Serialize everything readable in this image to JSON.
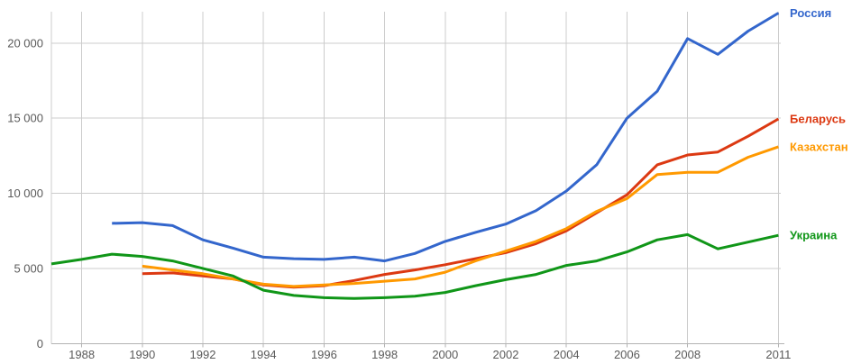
{
  "theme": {
    "background": "#FFFFFF",
    "gridline_color": "#CCCCCC",
    "axis_line_color": "#B3B3B3",
    "tick_mark_color": "#B3B3B3",
    "tick_text_color": "#5A5A5A"
  },
  "chart_data": {
    "type": "line",
    "title": "",
    "xlabel": "",
    "ylabel": "",
    "grid": true,
    "legend_position": "right-end-labels",
    "xlim": [
      1987,
      2011
    ],
    "ylim": [
      0,
      22400
    ],
    "x_tick_years": [
      1988,
      1990,
      1992,
      1994,
      1996,
      1998,
      2000,
      2002,
      2004,
      2006,
      2008,
      2011
    ],
    "x_tick_labels": [
      "1988",
      "1990",
      "1992",
      "1994",
      "1996",
      "1998",
      "2000",
      "2002",
      "2004",
      "2006",
      "2008",
      "2011"
    ],
    "x_gridline_years": [
      1987,
      1988,
      1990,
      1992,
      1994,
      1996,
      1998,
      2000,
      2002,
      2004,
      2006,
      2008,
      2011
    ],
    "y_ticks": [
      {
        "value": 0,
        "label": "0"
      },
      {
        "value": 5000,
        "label": "5 000"
      },
      {
        "value": 10000,
        "label": "10 000"
      },
      {
        "value": 15000,
        "label": "15 000"
      },
      {
        "value": 20000,
        "label": "20 000"
      }
    ],
    "series": [
      {
        "name": "Россия",
        "slug": "russia",
        "color": "#3366CC",
        "start_year": 1989,
        "end_year": 2011,
        "values": [
          8000,
          8050,
          7850,
          6900,
          6350,
          5750,
          5650,
          5600,
          5750,
          5500,
          6000,
          6800,
          7400,
          7950,
          8850,
          10150,
          11900,
          15000,
          16800,
          20300,
          19250,
          20800,
          22000
        ]
      },
      {
        "name": "Беларусь",
        "slug": "belarus",
        "color": "#DC3912",
        "start_year": 1990,
        "end_year": 2011,
        "values": [
          4650,
          4700,
          4500,
          4300,
          3900,
          3750,
          3850,
          4200,
          4600,
          4900,
          5250,
          5650,
          6050,
          6650,
          7500,
          8700,
          9900,
          11900,
          12550,
          12750,
          13800,
          14950
        ]
      },
      {
        "name": "Казахстан",
        "slug": "kazakhstan",
        "color": "#FF9900",
        "start_year": 1990,
        "end_year": 2011,
        "values": [
          5150,
          4900,
          4650,
          4300,
          3950,
          3800,
          3900,
          4000,
          4150,
          4300,
          4750,
          5500,
          6150,
          6800,
          7650,
          8800,
          9650,
          11250,
          11400,
          11400,
          12400,
          13100
        ]
      },
      {
        "name": "Украина",
        "slug": "ukraine",
        "color": "#109618",
        "start_year": 1987,
        "end_year": 2011,
        "values": [
          5300,
          5600,
          5950,
          5800,
          5500,
          5000,
          4500,
          3550,
          3200,
          3050,
          3000,
          3050,
          3150,
          3400,
          3850,
          4250,
          4600,
          5200,
          5500,
          6100,
          6900,
          7250,
          6300,
          6750,
          7200
        ]
      }
    ]
  }
}
